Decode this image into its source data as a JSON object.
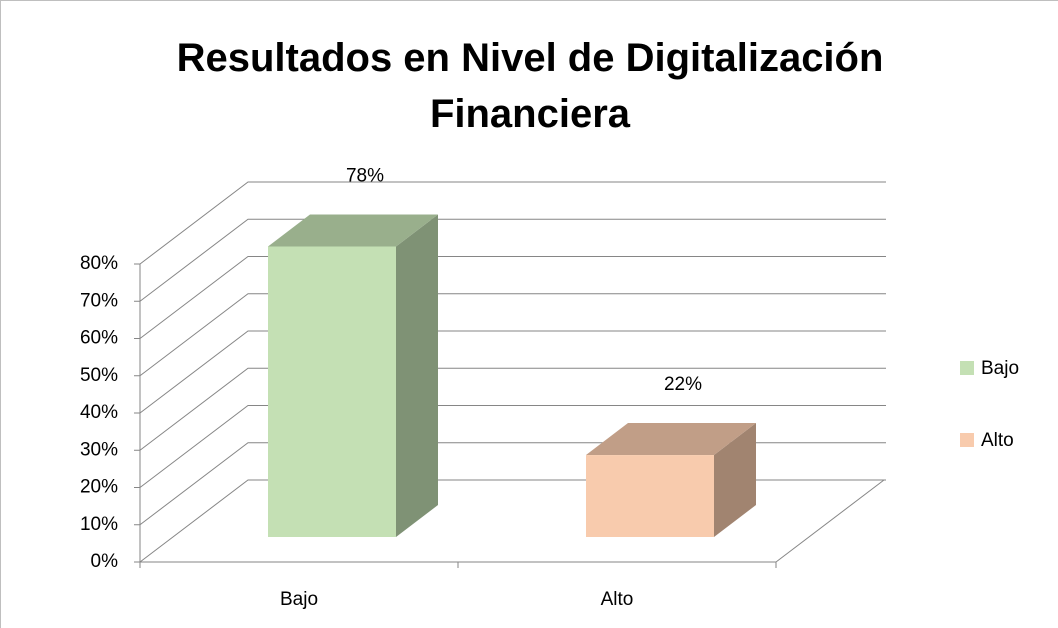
{
  "chart_data": {
    "type": "bar3d",
    "title": "Resultados en Nivel de Digitalización Financiera",
    "categories": [
      "Bajo",
      "Alto"
    ],
    "values": [
      78,
      22
    ],
    "value_labels": [
      "78%",
      "22%"
    ],
    "colors": [
      "#c4e0b4",
      "#f8cbad"
    ],
    "ylim": [
      0,
      80
    ],
    "yticks": [
      {
        "value": 0,
        "label": "0%"
      },
      {
        "value": 10,
        "label": "10%"
      },
      {
        "value": 20,
        "label": "20%"
      },
      {
        "value": 30,
        "label": "30%"
      },
      {
        "value": 40,
        "label": "40%"
      },
      {
        "value": 50,
        "label": "50%"
      },
      {
        "value": 60,
        "label": "60%"
      },
      {
        "value": 70,
        "label": "70%"
      },
      {
        "value": 80,
        "label": "80%"
      }
    ],
    "grid": true,
    "legend": "right"
  }
}
